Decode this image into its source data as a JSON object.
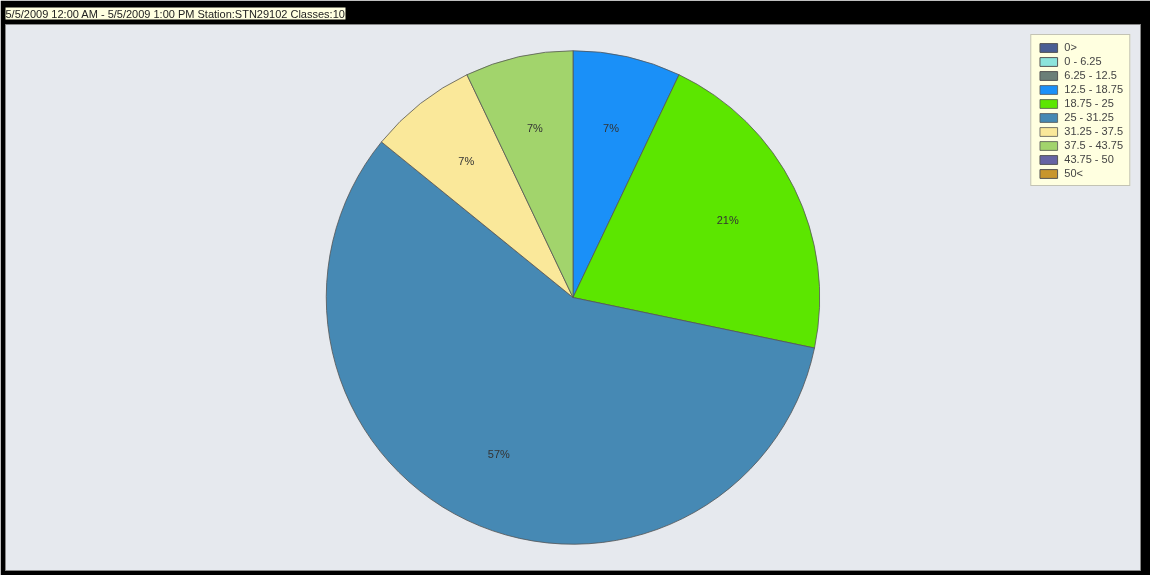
{
  "chart_data": {
    "type": "pie",
    "title": "5/5/2009 12:00 AM - 5/5/2009 1:00 PM Station:STN29102 Classes:10",
    "categories": [
      "0>",
      "0 - 6.25",
      "6.25 - 12.5",
      "12.5 - 18.75",
      "18.75 - 25",
      "25 - 31.25",
      "31.25 - 37.5",
      "37.5 - 43.75",
      "43.75 - 50",
      "50<"
    ],
    "values": [
      0,
      0,
      0,
      7,
      21,
      57,
      7,
      7,
      0,
      0
    ],
    "value_labels": [
      null,
      null,
      null,
      "7%",
      "21%",
      "57%",
      "7%",
      "7%",
      null,
      null
    ],
    "colors": [
      "#4a5e94",
      "#8ce4dc",
      "#6b7f78",
      "#1a90f8",
      "#5ce600",
      "#4689b4",
      "#fae89a",
      "#a2d46c",
      "#6664a4",
      "#c8962c"
    ],
    "legend": "top right"
  }
}
